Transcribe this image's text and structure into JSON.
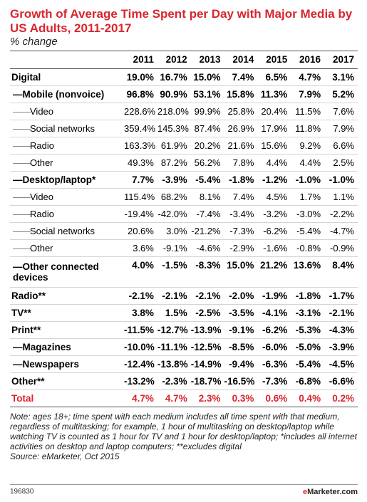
{
  "chart_data": {
    "type": "table",
    "title": "Growth of Average Time Spent per Day with Major Media by US Adults, 2011-2017",
    "subtitle": "% change",
    "columns": [
      "2011",
      "2012",
      "2013",
      "2014",
      "2015",
      "2016",
      "2017"
    ],
    "rows": [
      {
        "label": "Digital",
        "level": 0,
        "values": [
          "19.0%",
          "16.7%",
          "15.0%",
          "7.4%",
          "6.5%",
          "4.7%",
          "3.1%"
        ]
      },
      {
        "label": "Mobile (nonvoice)",
        "level": 1,
        "values": [
          "96.8%",
          "90.9%",
          "53.1%",
          "15.8%",
          "11.3%",
          "7.9%",
          "5.2%"
        ]
      },
      {
        "label": "Video",
        "level": 2,
        "values": [
          "228.6%",
          "218.0%",
          "99.9%",
          "25.8%",
          "20.4%",
          "11.5%",
          "7.6%"
        ]
      },
      {
        "label": "Social networks",
        "level": 2,
        "values": [
          "359.4%",
          "145.3%",
          "87.4%",
          "26.9%",
          "17.9%",
          "11.8%",
          "7.9%"
        ]
      },
      {
        "label": "Radio",
        "level": 2,
        "values": [
          "163.3%",
          "61.9%",
          "20.2%",
          "21.6%",
          "15.6%",
          "9.2%",
          "6.6%"
        ]
      },
      {
        "label": "Other",
        "level": 2,
        "values": [
          "49.3%",
          "87.2%",
          "56.2%",
          "7.8%",
          "4.4%",
          "4.4%",
          "2.5%"
        ]
      },
      {
        "label": "Desktop/laptop*",
        "level": 1,
        "values": [
          "7.7%",
          "-3.9%",
          "-5.4%",
          "-1.8%",
          "-1.2%",
          "-1.0%",
          "-1.0%"
        ]
      },
      {
        "label": "Video",
        "level": 2,
        "values": [
          "115.4%",
          "68.2%",
          "8.1%",
          "7.4%",
          "4.5%",
          "1.7%",
          "1.1%"
        ]
      },
      {
        "label": "Radio",
        "level": 2,
        "values": [
          "-19.4%",
          "-42.0%",
          "-7.4%",
          "-3.4%",
          "-3.2%",
          "-3.0%",
          "-2.2%"
        ]
      },
      {
        "label": "Social networks",
        "level": 2,
        "values": [
          "20.6%",
          "3.0%",
          "-21.2%",
          "-7.3%",
          "-6.2%",
          "-5.4%",
          "-4.7%"
        ]
      },
      {
        "label": "Other",
        "level": 2,
        "values": [
          "3.6%",
          "-9.1%",
          "-4.6%",
          "-2.9%",
          "-1.6%",
          "-0.8%",
          "-0.9%"
        ]
      },
      {
        "label": "Other connected devices",
        "level": 1,
        "values": [
          "4.0%",
          "-1.5%",
          "-8.3%",
          "15.0%",
          "21.2%",
          "13.6%",
          "8.4%"
        ]
      },
      {
        "label": "Radio**",
        "level": 0,
        "values": [
          "-2.1%",
          "-2.1%",
          "-2.1%",
          "-2.0%",
          "-1.9%",
          "-1.8%",
          "-1.7%"
        ]
      },
      {
        "label": "TV**",
        "level": 0,
        "values": [
          "3.8%",
          "1.5%",
          "-2.5%",
          "-3.5%",
          "-4.1%",
          "-3.1%",
          "-2.1%"
        ]
      },
      {
        "label": "Print**",
        "level": 0,
        "values": [
          "-11.5%",
          "-12.7%",
          "-13.9%",
          "-9.1%",
          "-6.2%",
          "-5.3%",
          "-4.3%"
        ]
      },
      {
        "label": "Magazines",
        "level": 1,
        "values": [
          "-10.0%",
          "-11.1%",
          "-12.5%",
          "-8.5%",
          "-6.0%",
          "-5.0%",
          "-3.9%"
        ]
      },
      {
        "label": "Newspapers",
        "level": 1,
        "values": [
          "-12.4%",
          "-13.8%",
          "-14.9%",
          "-9.4%",
          "-6.3%",
          "-5.4%",
          "-4.5%"
        ]
      },
      {
        "label": "Other**",
        "level": 0,
        "values": [
          "-13.2%",
          "-2.3%",
          "-18.7%",
          "-16.5%",
          "-7.3%",
          "-6.8%",
          "-6.6%"
        ]
      },
      {
        "label": "Total",
        "level": 0,
        "total": true,
        "values": [
          "4.7%",
          "4.7%",
          "2.3%",
          "0.3%",
          "0.6%",
          "0.4%",
          "0.2%"
        ]
      }
    ]
  },
  "note": "Note: ages 18+; time spent with each medium includes all time spent with that medium, regardless of multitasking; for example, 1 hour of multitasking on desktop/laptop while watching TV is counted as 1 hour for TV and 1 hour for desktop/laptop; *includes all internet activities on desktop and laptop computers; **excludes digital",
  "source": "Source: eMarketer, Oct 2015",
  "footer": {
    "id": "196830",
    "brand": "eMarketer.com"
  },
  "colors": {
    "accent": "#d8262e"
  }
}
